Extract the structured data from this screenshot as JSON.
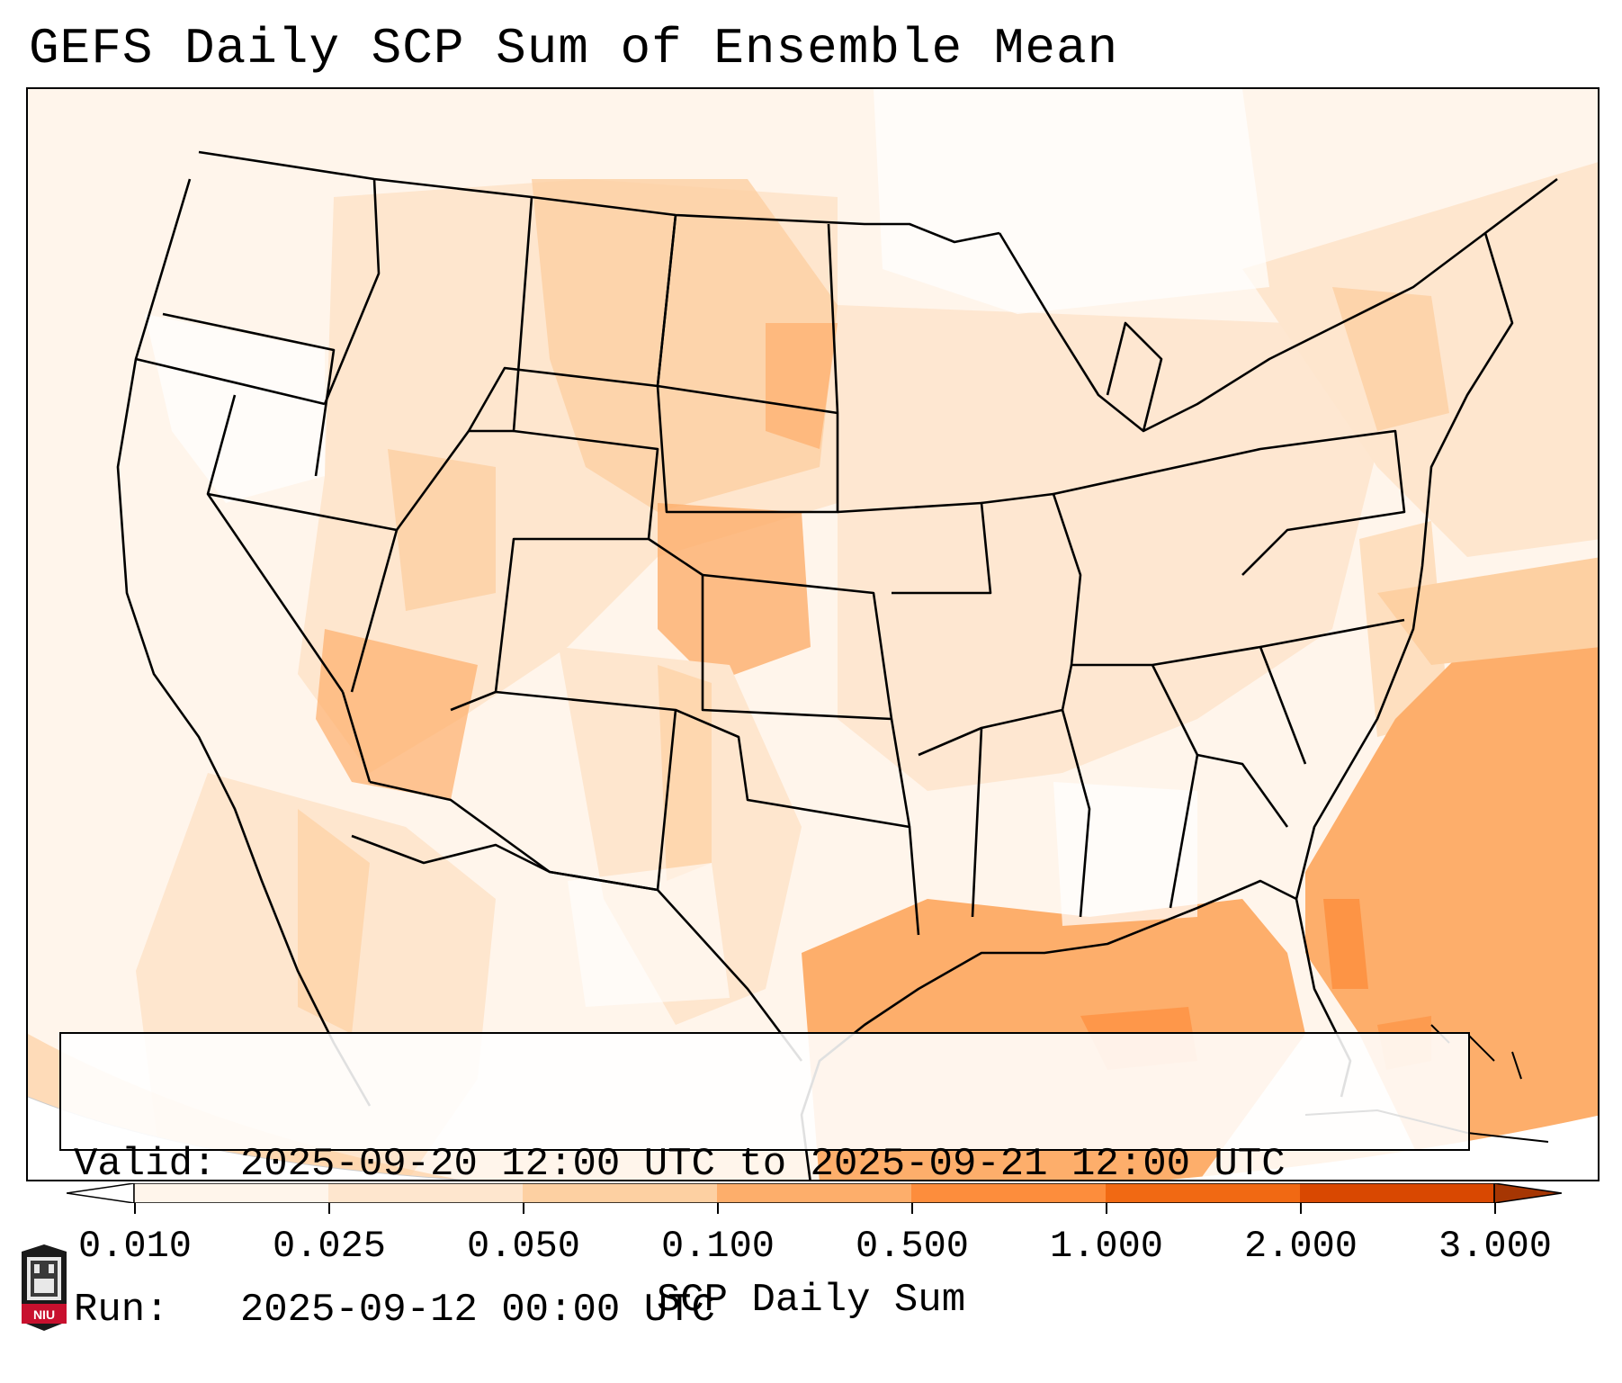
{
  "title": "GEFS Daily SCP Sum of Ensemble Mean",
  "valid_line": "Valid: 2025-09-20 12:00 UTC to 2025-09-21 12:00 UTC",
  "run_line": "Run:   2025-09-12 00:00 UTC",
  "colorbar": {
    "label": "SCP Daily Sum",
    "ticks": [
      "0.010",
      "0.025",
      "0.050",
      "0.100",
      "0.500",
      "1.000",
      "2.000",
      "3.000"
    ],
    "colors": [
      "#fff5eb",
      "#fee6ce",
      "#fdd0a2",
      "#fdae6b",
      "#fd8d3c",
      "#f16913",
      "#d94801",
      "#a63603"
    ]
  },
  "logo_text": "NIU",
  "colors": {
    "low": "#fee6ce",
    "mid": "#fdd0a2",
    "high": "#fdae6b",
    "peak": "#fd8d3c",
    "border": "#000000"
  }
}
